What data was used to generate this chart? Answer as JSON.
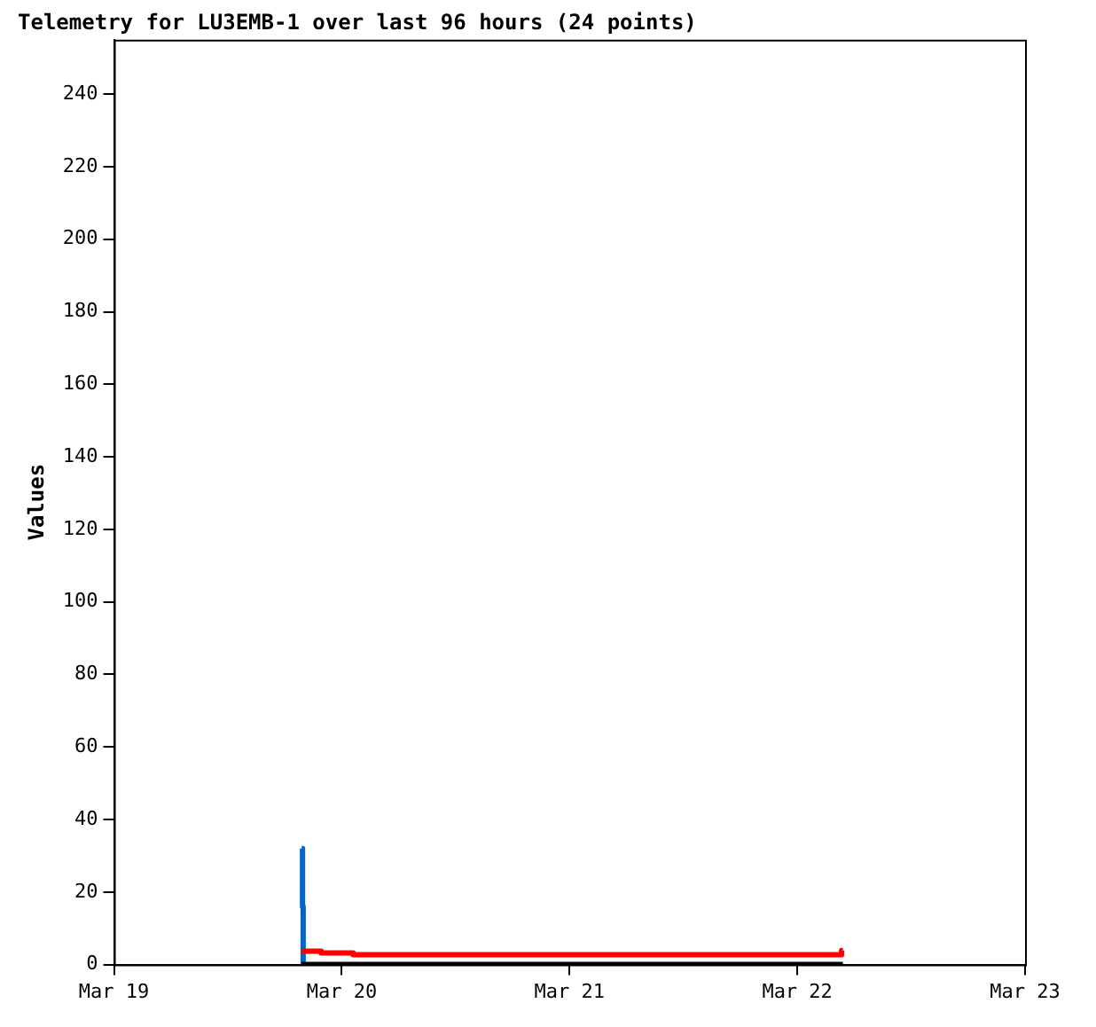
{
  "chart_data": {
    "type": "step",
    "title": "Telemetry for LU3EMB-1 over last 96 hours (24 points)",
    "ylabel": "Values",
    "xlim": [
      "--03-19",
      "--03-23"
    ],
    "xticks": [
      {
        "value": "--03-19",
        "label": "Mar 19"
      },
      {
        "value": "--03-20",
        "label": "Mar 20"
      },
      {
        "value": "--03-21",
        "label": "Mar 21"
      },
      {
        "value": "--03-22",
        "label": "Mar 22"
      },
      {
        "value": "--03-23",
        "label": "Mar 23"
      }
    ],
    "ylim": [
      0,
      255
    ],
    "yticks": [
      0,
      20,
      40,
      60,
      80,
      100,
      120,
      140,
      160,
      180,
      200,
      220,
      240
    ],
    "grid": false,
    "legend": false,
    "marker": "none",
    "series": [
      {
        "color": "#000000",
        "x": [
          "--03-19T19:47",
          "--03-22T04:48"
        ],
        "values": [
          0,
          0
        ]
      },
      {
        "color": "#ff0000",
        "x": [
          "--03-19T19:47",
          "--03-19T21:50",
          "--03-20T01:12",
          "--03-22T04:40",
          "--03-22T04:48"
        ],
        "values": [
          3.7,
          3.2,
          2.7,
          3.9,
          3.9
        ]
      },
      {
        "color": "#0066cc",
        "x": [
          "--03-19T19:47",
          "--03-19T19:52",
          "--03-19T19:56"
        ],
        "values": [
          32,
          16,
          0
        ]
      }
    ]
  }
}
